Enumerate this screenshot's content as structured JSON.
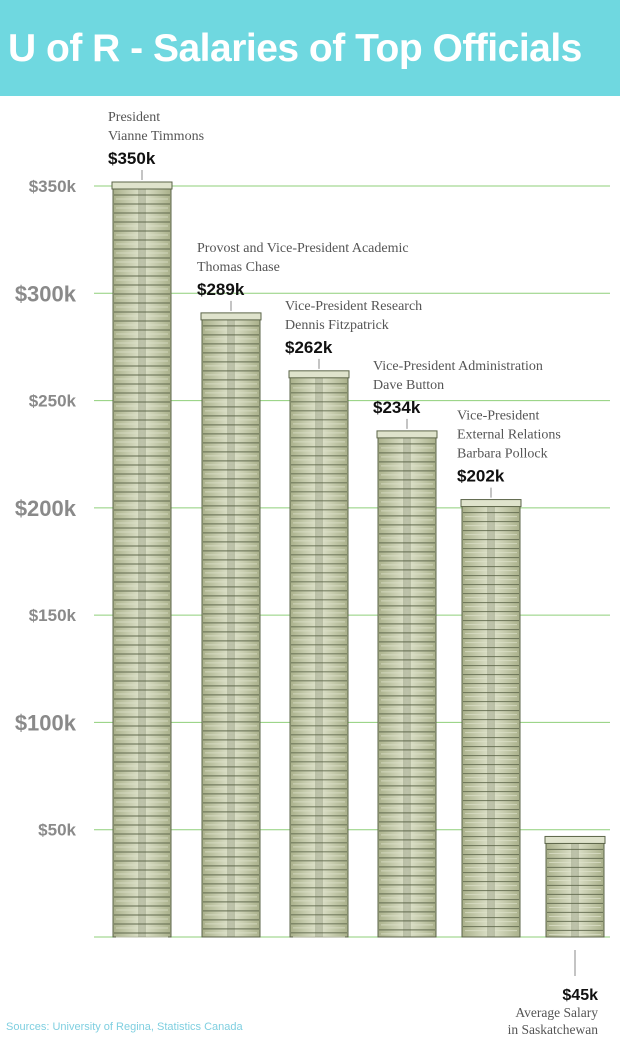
{
  "title": "U of R - Salaries of Top Officials",
  "source": "Sources: University of Regina, Statistics Canada",
  "colors": {
    "header_bg": "#6fd8e0",
    "title_text": "#ffffff",
    "gridline": "#8fcf7a",
    "tick_label": "#8a8a8a",
    "annotation_text": "#555555",
    "value_text": "#111111",
    "money_light": "#dfe3cc",
    "money_mid": "#a9b08a",
    "money_dark": "#5b6448",
    "source_text": "#7fcfe0"
  },
  "chart_data": {
    "type": "bar",
    "title": "U of R - Salaries of Top Officials",
    "xlabel": "",
    "ylabel": "",
    "ylim": [
      0,
      350
    ],
    "yticks": [
      50,
      100,
      150,
      200,
      250,
      300,
      350
    ],
    "ytick_labels": [
      "$50k",
      "$100k",
      "$150k",
      "$200k",
      "$250k",
      "$300k",
      "$350k"
    ],
    "grid": true,
    "bar_style": "stacks of money",
    "series": [
      {
        "categories": [
          "President Vianne Timmons",
          "Provost and Vice-President Academic Thomas Chase",
          "Vice-President Research Dennis Fitzpatrick",
          "Vice-President Administration Dave Button",
          "Vice-President External Relations Barbara Pollock",
          "Average Salary in Saskatchewan"
        ],
        "values": [
          350,
          289,
          262,
          234,
          202,
          45
        ]
      }
    ],
    "bars": [
      {
        "value": 350,
        "value_label": "$350k",
        "lines": [
          "President",
          "Vianne Timmons"
        ]
      },
      {
        "value": 289,
        "value_label": "$289k",
        "lines": [
          "Provost and Vice-President Academic",
          "Thomas Chase"
        ]
      },
      {
        "value": 262,
        "value_label": "$262k",
        "lines": [
          "Vice-President Research",
          "Dennis Fitzpatrick"
        ]
      },
      {
        "value": 234,
        "value_label": "$234k",
        "lines": [
          "Vice-President Administration",
          "Dave Button"
        ]
      },
      {
        "value": 202,
        "value_label": "$202k",
        "lines": [
          "Vice-President",
          "External Relations",
          "Barbara Pollock"
        ]
      },
      {
        "value": 45,
        "value_label": "$45k",
        "lines": [
          "Average Salary",
          "in Saskatchewan"
        ],
        "label_below": true
      }
    ]
  }
}
